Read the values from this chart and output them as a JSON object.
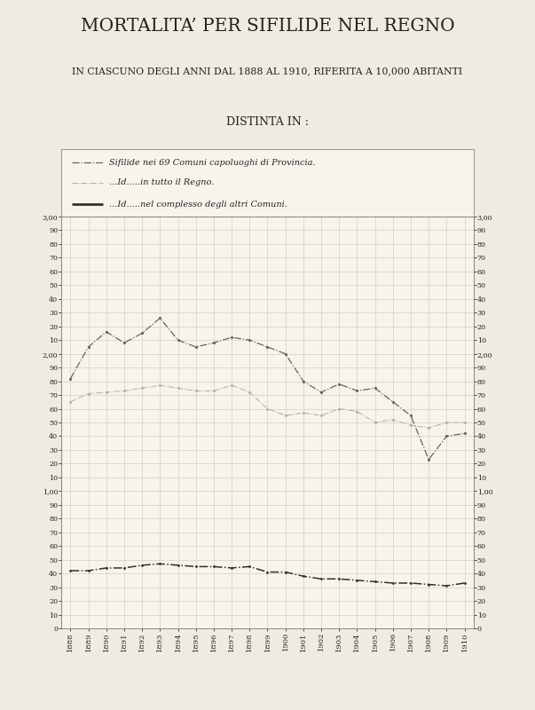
{
  "title1": "MORTALITA’ PER SIFILIDE NEL REGNO",
  "title2": "IN CIASCUNO DEGLI ANNI DAL 1888 AL 1910, RIFERITA A 10,000 ABITANTI",
  "title3": "DISTINTA IN :",
  "legend1": "Sifilide nei 69 Comuni capoluoghi di Provincia.",
  "legend2": "...Id.....in tutto il Regno.",
  "legend3": "...Id.....nel complesso degli altri Comuni.",
  "years": [
    1888,
    1889,
    1890,
    1891,
    1892,
    1893,
    1894,
    1895,
    1896,
    1897,
    1898,
    1899,
    1900,
    1901,
    1902,
    1903,
    1904,
    1905,
    1906,
    1907,
    1908,
    1909,
    1910
  ],
  "series1": [
    1.82,
    2.05,
    2.16,
    2.08,
    2.15,
    2.26,
    2.1,
    2.05,
    2.08,
    2.12,
    2.1,
    2.05,
    2.0,
    1.8,
    1.72,
    1.78,
    1.73,
    1.75,
    1.65,
    1.55,
    1.23,
    1.4,
    1.42
  ],
  "series2": [
    1.65,
    1.71,
    1.72,
    1.73,
    1.75,
    1.77,
    1.75,
    1.73,
    1.73,
    1.77,
    1.72,
    1.6,
    1.55,
    1.57,
    1.55,
    1.6,
    1.58,
    1.5,
    1.52,
    1.48,
    1.46,
    1.5,
    1.5
  ],
  "series3": [
    0.42,
    0.42,
    0.44,
    0.44,
    0.46,
    0.47,
    0.46,
    0.45,
    0.45,
    0.44,
    0.45,
    0.41,
    0.41,
    0.38,
    0.36,
    0.36,
    0.35,
    0.34,
    0.33,
    0.33,
    0.32,
    0.31,
    0.33
  ],
  "bg_color": "#f0ebe0",
  "plot_bg": "#f7f4ec",
  "grid_color": "#c8c8b8",
  "line1_color": "#666655",
  "line2_color": "#aaaaaa",
  "line3_color": "#333322",
  "text_color": "#222222"
}
